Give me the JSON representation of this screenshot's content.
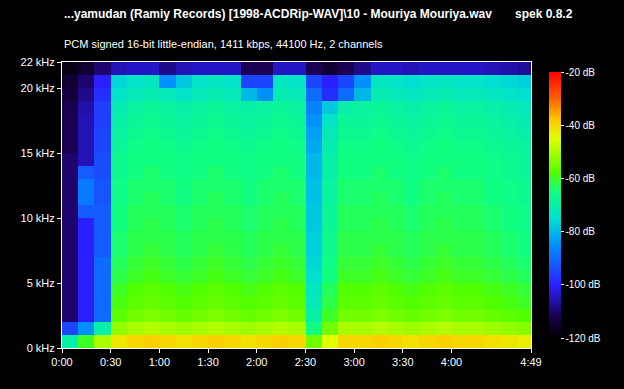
{
  "chart_data": {
    "type": "heatmap",
    "title": "...yamudan (Ramiy Records) [1998-ACDRip-WAV]\\10 - Mouriya Mouriya.wav",
    "annotation": "spek 0.8.2",
    "subtitle": "PCM signed 16-bit little-endian, 1411 kbps, 44100 Hz, 2 channels",
    "x": [
      5,
      15,
      25,
      35,
      45,
      55,
      65,
      75,
      85,
      95,
      105,
      115,
      125,
      135,
      145,
      155,
      165,
      175,
      185,
      195,
      205,
      215,
      225,
      235,
      245,
      255,
      265,
      275,
      285
    ],
    "y": [
      0.5,
      1.5,
      2.5,
      3.5,
      4.5,
      5.5,
      6.5,
      7.5,
      8.5,
      9.5,
      10.5,
      11.5,
      12.5,
      13.5,
      14.5,
      15.5,
      16.5,
      17.5,
      18.5,
      19.5,
      20.5,
      21.5
    ],
    "z": [
      [
        -70,
        -60,
        -50,
        -42,
        -40,
        -39,
        -40,
        -41,
        -40,
        -39,
        -40,
        -41,
        -40,
        -39,
        -40,
        -55,
        -45,
        -40,
        -40,
        -39,
        -40,
        -41,
        -40,
        -39,
        -40,
        -40,
        -41,
        -42,
        -43
      ],
      [
        -95,
        -85,
        -70,
        -52,
        -50,
        -49,
        -50,
        -51,
        -50,
        -49,
        -50,
        -51,
        -50,
        -49,
        -50,
        -65,
        -55,
        -50,
        -50,
        -49,
        -50,
        -51,
        -50,
        -49,
        -50,
        -50,
        -51,
        -52,
        -53
      ],
      [
        -110,
        -100,
        -90,
        -57,
        -55,
        -54,
        -55,
        -56,
        -55,
        -54,
        -55,
        -56,
        -55,
        -54,
        -55,
        -70,
        -60,
        -55,
        -55,
        -54,
        -55,
        -56,
        -55,
        -54,
        -55,
        -55,
        -56,
        -57,
        -58
      ],
      [
        -110,
        -100,
        -90,
        -59,
        -57,
        -56,
        -57,
        -58,
        -57,
        -56,
        -57,
        -58,
        -57,
        -56,
        -57,
        -72,
        -62,
        -57,
        -57,
        -56,
        -57,
        -58,
        -57,
        -56,
        -57,
        -57,
        -58,
        -59,
        -60
      ],
      [
        -110,
        -100,
        -90,
        -60,
        -58,
        -57,
        -58,
        -59,
        -58,
        -57,
        -58,
        -59,
        -58,
        -57,
        -58,
        -73,
        -63,
        -58,
        -58,
        -57,
        -58,
        -59,
        -58,
        -57,
        -58,
        -58,
        -59,
        -60,
        -61
      ],
      [
        -110,
        -100,
        -90,
        -62,
        -60,
        -59,
        -60,
        -61,
        -60,
        -59,
        -60,
        -61,
        -60,
        -59,
        -60,
        -75,
        -65,
        -60,
        -60,
        -59,
        -60,
        -61,
        -60,
        -59,
        -60,
        -60,
        -61,
        -62,
        -63
      ],
      [
        -110,
        -100,
        -90,
        -63,
        -61,
        -60,
        -61,
        -62,
        -61,
        -60,
        -61,
        -62,
        -61,
        -60,
        -61,
        -76,
        -66,
        -61,
        -61,
        -60,
        -61,
        -62,
        -61,
        -60,
        -61,
        -61,
        -62,
        -63,
        -64
      ],
      [
        -110,
        -100,
        -92,
        -64,
        -62,
        -61,
        -62,
        -63,
        -62,
        -61,
        -62,
        -63,
        -62,
        -61,
        -62,
        -77,
        -67,
        -62,
        -62,
        -61,
        -62,
        -63,
        -62,
        -61,
        -62,
        -62,
        -63,
        -64,
        -65
      ],
      [
        -110,
        -100,
        -92,
        -64,
        -62,
        -62,
        -62,
        -63,
        -62,
        -62,
        -62,
        -63,
        -62,
        -62,
        -62,
        -77,
        -67,
        -62,
        -62,
        -62,
        -62,
        -63,
        -62,
        -62,
        -62,
        -62,
        -63,
        -64,
        -65
      ],
      [
        -110,
        -100,
        -92,
        -65,
        -63,
        -62,
        -63,
        -64,
        -63,
        -62,
        -63,
        -64,
        -63,
        -62,
        -63,
        -78,
        -68,
        -63,
        -63,
        -62,
        -63,
        -64,
        -63,
        -62,
        -63,
        -63,
        -64,
        -65,
        -66
      ],
      [
        -110,
        -92,
        -92,
        -65,
        -63,
        -63,
        -63,
        -64,
        -63,
        -63,
        -63,
        -64,
        -63,
        -63,
        -63,
        -78,
        -68,
        -63,
        -63,
        -63,
        -63,
        -64,
        -63,
        -63,
        -63,
        -63,
        -64,
        -65,
        -66
      ],
      [
        -110,
        -88,
        -93,
        -66,
        -64,
        -63,
        -64,
        -65,
        -64,
        -63,
        -64,
        -65,
        -64,
        -63,
        -64,
        -79,
        -69,
        -64,
        -64,
        -63,
        -64,
        -65,
        -64,
        -63,
        -64,
        -64,
        -65,
        -66,
        -67
      ],
      [
        -110,
        -88,
        -93,
        -66,
        -64,
        -64,
        -64,
        -65,
        -64,
        -64,
        -64,
        -65,
        -64,
        -64,
        -64,
        -79,
        -69,
        -64,
        -64,
        -64,
        -64,
        -65,
        -64,
        -64,
        -64,
        -64,
        -65,
        -66,
        -67
      ],
      [
        -110,
        -92,
        -94,
        -67,
        -65,
        -64,
        -65,
        -66,
        -65,
        -64,
        -65,
        -66,
        -65,
        -64,
        -65,
        -80,
        -70,
        -65,
        -65,
        -64,
        -65,
        -66,
        -65,
        -64,
        -65,
        -65,
        -66,
        -67,
        -68
      ],
      [
        -110,
        -105,
        -94,
        -67,
        -65,
        -65,
        -65,
        -66,
        -65,
        -65,
        -65,
        -66,
        -65,
        -65,
        -65,
        -80,
        -70,
        -65,
        -65,
        -65,
        -65,
        -66,
        -65,
        -65,
        -65,
        -65,
        -66,
        -67,
        -68
      ],
      [
        -112,
        -105,
        -95,
        -68,
        -66,
        -65,
        -66,
        -67,
        -66,
        -65,
        -66,
        -67,
        -66,
        -65,
        -66,
        -82,
        -71,
        -66,
        -66,
        -65,
        -66,
        -67,
        -66,
        -65,
        -66,
        -66,
        -67,
        -68,
        -69
      ],
      [
        -112,
        -105,
        -95,
        -69,
        -67,
        -66,
        -67,
        -68,
        -67,
        -66,
        -67,
        -68,
        -67,
        -66,
        -67,
        -83,
        -72,
        -67,
        -67,
        -66,
        -67,
        -68,
        -67,
        -66,
        -67,
        -67,
        -68,
        -69,
        -70
      ],
      [
        -112,
        -105,
        -96,
        -70,
        -68,
        -67,
        -68,
        -69,
        -68,
        -67,
        -68,
        -69,
        -68,
        -67,
        -68,
        -85,
        -74,
        -68,
        -68,
        -67,
        -68,
        -69,
        -68,
        -67,
        -68,
        -68,
        -69,
        -70,
        -71
      ],
      [
        -112,
        -106,
        -96,
        -71,
        -69,
        -68,
        -69,
        -70,
        -69,
        -68,
        -69,
        -70,
        -69,
        -68,
        -69,
        -87,
        -78,
        -70,
        -69,
        -68,
        -69,
        -70,
        -69,
        -68,
        -69,
        -69,
        -70,
        -71,
        -72
      ],
      [
        -114,
        -108,
        -98,
        -74,
        -72,
        -71,
        -72,
        -74,
        -72,
        -71,
        -72,
        -80,
        -85,
        -71,
        -72,
        -90,
        -98,
        -90,
        -80,
        -71,
        -72,
        -73,
        -72,
        -71,
        -72,
        -72,
        -73,
        -74,
        -75
      ],
      [
        -115,
        -110,
        -100,
        -76,
        -74,
        -73,
        -85,
        -78,
        -74,
        -73,
        -74,
        -95,
        -95,
        -73,
        -74,
        -95,
        -100,
        -95,
        -85,
        -73,
        -74,
        -75,
        -74,
        -73,
        -74,
        -74,
        -75,
        -76,
        -77
      ],
      [
        -118,
        -115,
        -110,
        -105,
        -104,
        -104,
        -108,
        -105,
        -104,
        -104,
        -104,
        -112,
        -112,
        -104,
        -104,
        -112,
        -115,
        -112,
        -108,
        -104,
        -104,
        -105,
        -104,
        -104,
        -104,
        -104,
        -105,
        -106,
        -107
      ]
    ],
    "xlim": [
      0,
      289
    ],
    "xticks": [
      {
        "value": 0,
        "label": "0:00"
      },
      {
        "value": 30,
        "label": "0:30"
      },
      {
        "value": 60,
        "label": "1:00"
      },
      {
        "value": 90,
        "label": "1:30"
      },
      {
        "value": 120,
        "label": "2:00"
      },
      {
        "value": 150,
        "label": "2:30"
      },
      {
        "value": 180,
        "label": "3:00"
      },
      {
        "value": 210,
        "label": "3:30"
      },
      {
        "value": 240,
        "label": "4:00"
      },
      {
        "value": 289,
        "label": "4:49"
      }
    ],
    "ylim": [
      0,
      22
    ],
    "yticks": [
      {
        "value": 0,
        "label": "0 kHz"
      },
      {
        "value": 5,
        "label": "5 kHz"
      },
      {
        "value": 10,
        "label": "10 kHz"
      },
      {
        "value": 15,
        "label": "15 kHz"
      },
      {
        "value": 20,
        "label": "20 kHz"
      },
      {
        "value": 22,
        "label": "22 kHz"
      }
    ],
    "colorbar_range": [
      -120,
      -20
    ],
    "colorbar_ticks": [
      {
        "value": -20,
        "label": "-20 dB"
      },
      {
        "value": -40,
        "label": "-40 dB"
      },
      {
        "value": -60,
        "label": "-60 dB"
      },
      {
        "value": -80,
        "label": "-80 dB"
      },
      {
        "value": -100,
        "label": "-100 dB"
      },
      {
        "value": -120,
        "label": "-120 dB"
      }
    ],
    "grid": false
  }
}
